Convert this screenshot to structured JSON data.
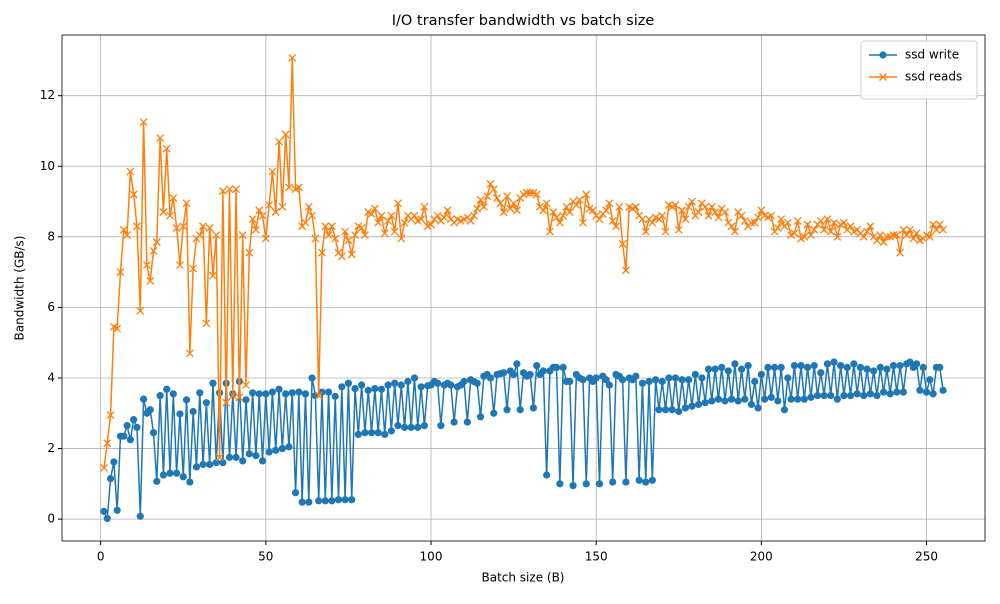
{
  "chart_data": {
    "type": "line",
    "title": "I/O transfer bandwidth vs batch size",
    "x_label": "Batch size (B)",
    "y_label": "Bandwidth (GB/s)",
    "x": [
      1,
      2,
      3,
      4,
      5,
      6,
      7,
      8,
      9,
      10,
      11,
      12,
      13,
      14,
      15,
      16,
      17,
      18,
      19,
      20,
      21,
      22,
      23,
      24,
      25,
      26,
      27,
      28,
      29,
      30,
      31,
      32,
      33,
      34,
      35,
      36,
      37,
      38,
      39,
      40,
      41,
      42,
      43,
      44,
      45,
      46,
      47,
      48,
      49,
      50,
      51,
      52,
      53,
      54,
      55,
      56,
      57,
      58,
      59,
      60,
      61,
      62,
      63,
      64,
      65,
      66,
      67,
      68,
      69,
      70,
      71,
      72,
      73,
      74,
      75,
      76,
      77,
      78,
      79,
      80,
      81,
      82,
      83,
      84,
      85,
      86,
      87,
      88,
      89,
      90,
      91,
      92,
      93,
      94,
      95,
      96,
      97,
      98,
      99,
      100,
      101,
      102,
      103,
      104,
      105,
      106,
      107,
      108,
      109,
      110,
      111,
      112,
      113,
      114,
      115,
      116,
      117,
      118,
      119,
      120,
      121,
      122,
      123,
      124,
      125,
      126,
      127,
      128,
      129,
      130,
      131,
      132,
      133,
      134,
      135,
      136,
      137,
      138,
      139,
      140,
      141,
      142,
      143,
      144,
      145,
      146,
      147,
      148,
      149,
      150,
      151,
      152,
      153,
      154,
      155,
      156,
      157,
      158,
      159,
      160,
      161,
      162,
      163,
      164,
      165,
      166,
      167,
      168,
      169,
      170,
      171,
      172,
      173,
      174,
      175,
      176,
      177,
      178,
      179,
      180,
      181,
      182,
      183,
      184,
      185,
      186,
      187,
      188,
      189,
      190,
      191,
      192,
      193,
      194,
      195,
      196,
      197,
      198,
      199,
      200,
      201,
      202,
      203,
      204,
      205,
      206,
      207,
      208,
      209,
      210,
      211,
      212,
      213,
      214,
      215,
      216,
      217,
      218,
      219,
      220,
      221,
      222,
      223,
      224,
      225,
      226,
      227,
      228,
      229,
      230,
      231,
      232,
      233,
      234,
      235,
      236,
      237,
      238,
      239,
      240,
      241,
      242,
      243,
      244,
      245,
      246,
      247,
      248,
      249,
      250,
      251,
      252,
      253,
      254,
      255
    ],
    "series": [
      {
        "name": "ssd write",
        "color": "#1f77b4",
        "marker": "circle",
        "values": [
          0.22,
          0.02,
          1.15,
          1.62,
          0.25,
          2.35,
          2.35,
          2.65,
          2.25,
          2.82,
          2.6,
          0.08,
          3.4,
          3.0,
          3.1,
          2.45,
          1.07,
          3.5,
          1.25,
          3.68,
          1.3,
          3.55,
          1.3,
          2.98,
          1.2,
          3.38,
          1.05,
          3.05,
          1.48,
          3.58,
          1.55,
          3.3,
          1.55,
          3.85,
          1.6,
          3.58,
          1.6,
          3.85,
          1.75,
          3.55,
          1.75,
          3.9,
          1.65,
          3.38,
          1.85,
          3.58,
          1.8,
          3.55,
          1.65,
          3.55,
          1.9,
          3.6,
          1.95,
          3.68,
          2.0,
          3.55,
          2.05,
          3.58,
          0.75,
          3.6,
          0.48,
          3.55,
          0.48,
          4.0,
          3.5,
          0.52,
          3.6,
          0.52,
          3.6,
          0.52,
          3.48,
          0.55,
          3.75,
          0.55,
          3.85,
          0.55,
          3.7,
          2.4,
          3.8,
          2.45,
          3.65,
          2.45,
          3.7,
          2.45,
          3.68,
          2.4,
          3.8,
          2.5,
          3.85,
          2.65,
          3.8,
          2.6,
          3.9,
          2.6,
          4.0,
          2.6,
          3.75,
          2.65,
          3.78,
          3.8,
          3.9,
          3.85,
          2.65,
          3.8,
          3.85,
          3.8,
          2.75,
          3.75,
          3.8,
          3.9,
          2.75,
          3.95,
          3.9,
          3.85,
          2.9,
          4.05,
          4.1,
          4.0,
          3.0,
          4.1,
          4.12,
          4.15,
          3.1,
          4.2,
          4.1,
          4.4,
          3.1,
          4.15,
          4.05,
          4.1,
          3.15,
          4.35,
          4.1,
          4.2,
          1.25,
          4.2,
          4.3,
          4.3,
          1.0,
          4.3,
          3.9,
          3.9,
          0.95,
          4.1,
          4.0,
          3.95,
          1.0,
          4.0,
          3.9,
          4.0,
          1.0,
          4.05,
          3.95,
          3.8,
          1.05,
          4.1,
          4.05,
          3.95,
          1.05,
          4.0,
          3.95,
          4.05,
          1.1,
          3.85,
          1.05,
          3.9,
          1.1,
          3.95,
          3.1,
          3.9,
          3.1,
          4.0,
          3.1,
          4.0,
          3.05,
          3.95,
          3.15,
          3.95,
          3.2,
          4.1,
          3.25,
          4.0,
          3.3,
          4.25,
          3.35,
          4.25,
          3.4,
          4.3,
          3.35,
          4.2,
          3.4,
          4.4,
          3.35,
          4.25,
          3.4,
          4.35,
          3.25,
          3.9,
          3.15,
          4.1,
          3.4,
          4.3,
          3.45,
          4.3,
          3.35,
          4.3,
          3.1,
          4.0,
          3.4,
          4.35,
          3.4,
          4.35,
          3.4,
          4.3,
          3.45,
          4.35,
          3.5,
          4.15,
          3.5,
          4.4,
          3.5,
          4.45,
          3.4,
          4.35,
          3.5,
          4.3,
          3.5,
          4.4,
          3.55,
          4.3,
          3.5,
          4.25,
          3.55,
          4.2,
          3.5,
          4.3,
          3.6,
          4.25,
          3.55,
          4.35,
          3.6,
          4.35,
          3.6,
          4.4,
          4.45,
          4.3,
          4.4,
          3.65,
          4.3,
          3.6,
          3.95,
          3.55,
          4.3,
          4.3,
          3.65
        ]
      },
      {
        "name": "ssd reads",
        "color": "#ff7f0e",
        "marker": "x",
        "values": [
          1.45,
          2.15,
          2.95,
          5.45,
          5.4,
          7.0,
          8.2,
          8.05,
          9.85,
          9.2,
          8.3,
          5.9,
          11.25,
          7.2,
          6.75,
          7.6,
          7.85,
          10.8,
          8.7,
          10.5,
          8.6,
          9.1,
          8.25,
          7.2,
          8.3,
          8.95,
          4.7,
          7.1,
          7.95,
          8.05,
          8.3,
          5.55,
          8.25,
          6.9,
          8.05,
          1.75,
          9.3,
          3.3,
          9.35,
          3.5,
          9.35,
          3.45,
          8.05,
          3.8,
          7.55,
          8.5,
          8.2,
          8.75,
          8.6,
          7.95,
          8.9,
          9.85,
          8.7,
          10.7,
          8.85,
          10.9,
          9.4,
          13.07,
          9.35,
          9.4,
          8.3,
          8.4,
          8.85,
          8.6,
          7.95,
          3.5,
          7.55,
          8.3,
          8.05,
          8.3,
          7.95,
          7.55,
          7.45,
          8.15,
          7.9,
          7.5,
          8.05,
          8.3,
          8.25,
          8.05,
          8.7,
          8.65,
          8.8,
          8.4,
          8.6,
          8.1,
          8.45,
          8.6,
          8.15,
          8.95,
          7.95,
          8.4,
          8.6,
          8.5,
          8.6,
          8.45,
          8.5,
          8.85,
          8.3,
          8.35,
          8.5,
          8.6,
          8.45,
          8.55,
          8.75,
          8.5,
          8.4,
          8.5,
          8.45,
          8.5,
          8.55,
          8.45,
          8.6,
          8.8,
          9.05,
          8.85,
          9.15,
          9.5,
          9.35,
          9.1,
          8.95,
          8.7,
          9.15,
          8.8,
          8.95,
          8.75,
          9.1,
          9.2,
          9.25,
          9.25,
          9.25,
          9.2,
          8.85,
          8.75,
          8.95,
          8.15,
          8.7,
          8.55,
          8.4,
          8.6,
          8.85,
          8.7,
          9.0,
          8.9,
          9.05,
          8.4,
          9.2,
          8.8,
          8.75,
          8.6,
          8.5,
          8.65,
          8.75,
          8.95,
          8.45,
          8.3,
          8.85,
          7.8,
          7.05,
          8.85,
          8.8,
          8.85,
          8.6,
          8.5,
          8.15,
          8.5,
          8.4,
          8.55,
          8.5,
          8.6,
          8.15,
          8.9,
          8.85,
          8.9,
          8.2,
          8.75,
          8.5,
          8.85,
          9.0,
          8.6,
          8.7,
          8.95,
          8.85,
          8.6,
          8.85,
          8.7,
          8.55,
          8.8,
          8.7,
          8.4,
          8.3,
          8.15,
          8.7,
          8.6,
          8.45,
          8.3,
          8.4,
          8.4,
          8.55,
          8.75,
          8.6,
          8.55,
          8.6,
          8.15,
          8.25,
          8.5,
          8.3,
          8.4,
          8.05,
          8.1,
          8.45,
          7.95,
          8.0,
          8.35,
          8.05,
          8.2,
          8.35,
          8.45,
          8.2,
          8.5,
          8.15,
          8.4,
          8.0,
          8.35,
          8.4,
          8.2,
          8.3,
          8.15,
          8.2,
          8.1,
          8.0,
          8.15,
          8.3,
          8.0,
          7.9,
          8.05,
          7.85,
          8.0,
          8.0,
          8.05,
          8.05,
          7.55,
          8.2,
          8.05,
          8.2,
          7.95,
          8.1,
          7.9,
          7.95,
          8.05,
          8.0,
          8.35,
          8.2,
          8.35,
          8.2
        ]
      }
    ],
    "xlim": [
      -11.7,
      267.7
    ],
    "ylim": [
      -0.62,
      13.72
    ],
    "xticks": [
      0,
      50,
      100,
      150,
      200,
      250
    ],
    "yticks": [
      0,
      2,
      4,
      6,
      8,
      10,
      12
    ],
    "grid": true,
    "legend": "upper-right"
  }
}
